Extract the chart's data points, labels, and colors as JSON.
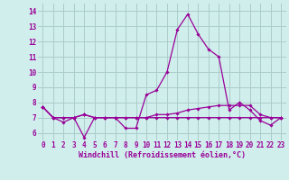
{
  "xlabel": "Windchill (Refroidissement éolien,°C)",
  "background_color": "#d0eeeb",
  "grid_color": "#aacccc",
  "line_color": "#990099",
  "xlim": [
    -0.5,
    23.5
  ],
  "ylim": [
    5.5,
    14.5
  ],
  "yticks": [
    6,
    7,
    8,
    9,
    10,
    11,
    12,
    13,
    14
  ],
  "xticks": [
    0,
    1,
    2,
    3,
    4,
    5,
    6,
    7,
    8,
    9,
    10,
    11,
    12,
    13,
    14,
    15,
    16,
    17,
    18,
    19,
    20,
    21,
    22,
    23
  ],
  "series": [
    [
      7.7,
      7.0,
      6.7,
      7.0,
      5.7,
      7.0,
      7.0,
      7.0,
      6.3,
      6.3,
      8.5,
      8.8,
      10.0,
      12.8,
      13.8,
      12.5,
      11.5,
      11.0,
      7.5,
      8.0,
      7.5,
      6.8,
      6.5,
      7.0
    ],
    [
      7.7,
      7.0,
      7.0,
      7.0,
      7.2,
      7.0,
      7.0,
      7.0,
      7.0,
      7.0,
      7.0,
      7.2,
      7.2,
      7.3,
      7.5,
      7.6,
      7.7,
      7.8,
      7.8,
      7.8,
      7.8,
      7.2,
      7.0,
      7.0
    ],
    [
      7.7,
      7.0,
      7.0,
      7.0,
      7.2,
      7.0,
      7.0,
      7.0,
      7.0,
      7.0,
      7.0,
      7.0,
      7.0,
      7.0,
      7.0,
      7.0,
      7.0,
      7.0,
      7.0,
      7.0,
      7.0,
      7.0,
      7.0,
      7.0
    ]
  ],
  "tick_fontsize": 5.5,
  "xlabel_fontsize": 6.0
}
